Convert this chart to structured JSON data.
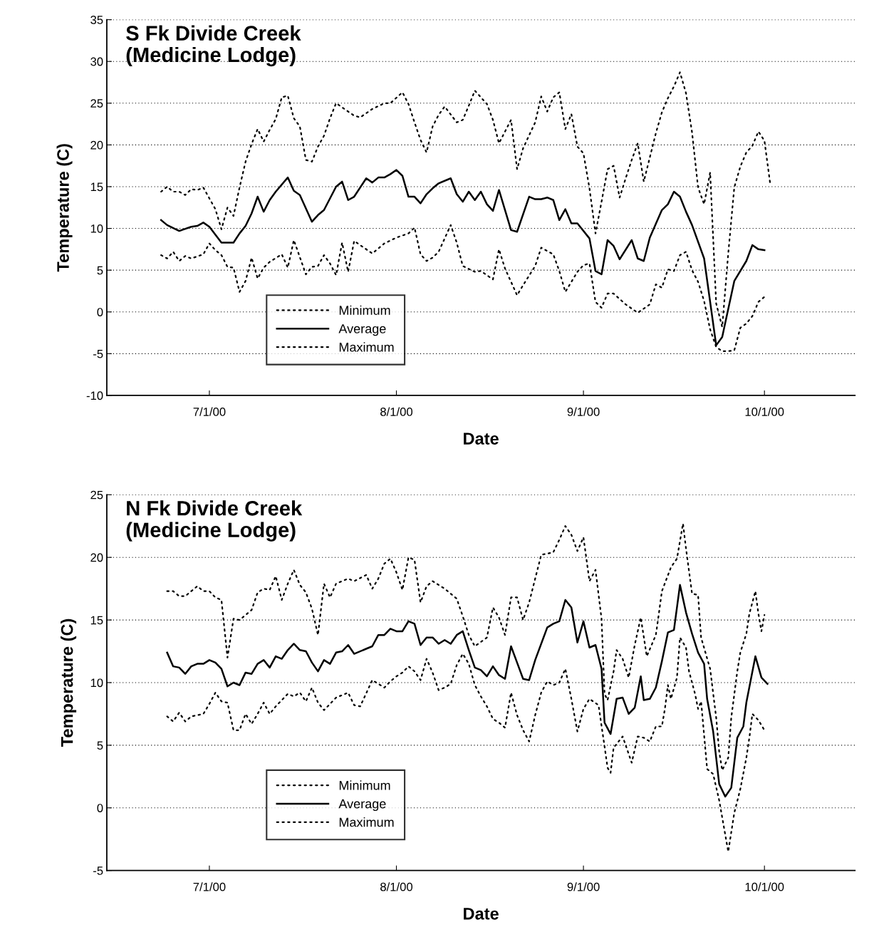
{
  "chart_data": [
    {
      "type": "line",
      "title": "S Fk Divide Creek\n(Medicine Lodge)",
      "xlabel": "Date",
      "ylabel": "Temperature (C)",
      "xlim": [
        "2000-06-14",
        "2000-10-16"
      ],
      "ylim": [
        -10,
        35
      ],
      "xticks": [
        {
          "value": "2000-07-01",
          "label": "7/1/00"
        },
        {
          "value": "2000-08-01",
          "label": "8/1/00"
        },
        {
          "value": "2000-09-01",
          "label": "9/1/00"
        },
        {
          "value": "2000-10-01",
          "label": "10/1/00"
        }
      ],
      "yticks": [
        -10,
        -5,
        0,
        5,
        10,
        15,
        20,
        25,
        30,
        35
      ],
      "grid": "y",
      "legend": "bottom left",
      "series": [
        {
          "name": "Minimum",
          "color": "#000000",
          "line_style": "dotted",
          "x": [
            "2000-06-23",
            "2000-06-24",
            "2000-06-25",
            "2000-06-26",
            "2000-06-27",
            "2000-06-28",
            "2000-06-30",
            "2000-07-01",
            "2000-07-02",
            "2000-07-03",
            "2000-07-04",
            "2000-07-05",
            "2000-07-06",
            "2000-07-07",
            "2000-07-08",
            "2000-07-09",
            "2000-07-10",
            "2000-07-11",
            "2000-07-13",
            "2000-07-14",
            "2000-07-15",
            "2000-07-17",
            "2000-07-18",
            "2000-07-19",
            "2000-07-20",
            "2000-07-21",
            "2000-07-22",
            "2000-07-23",
            "2000-07-24",
            "2000-07-25",
            "2000-07-28",
            "2000-07-30",
            "2000-08-01",
            "2000-08-03",
            "2000-08-04",
            "2000-08-05",
            "2000-08-06",
            "2000-08-07",
            "2000-08-08",
            "2000-08-10",
            "2000-08-11",
            "2000-08-12",
            "2000-08-14",
            "2000-08-15",
            "2000-08-17",
            "2000-08-18",
            "2000-08-19",
            "2000-08-21",
            "2000-08-22",
            "2000-08-24",
            "2000-08-25",
            "2000-08-27",
            "2000-08-28",
            "2000-08-29",
            "2000-08-31",
            "2000-09-01",
            "2000-09-02",
            "2000-09-03",
            "2000-09-04",
            "2000-09-05",
            "2000-09-06",
            "2000-09-08",
            "2000-09-09",
            "2000-09-10",
            "2000-09-12",
            "2000-09-13",
            "2000-09-14",
            "2000-09-15",
            "2000-09-16",
            "2000-09-17",
            "2000-09-18",
            "2000-09-19",
            "2000-09-20",
            "2000-09-21",
            "2000-09-22",
            "2000-09-23",
            "2000-09-24",
            "2000-09-25",
            "2000-09-26",
            "2000-09-27",
            "2000-09-28",
            "2000-09-29",
            "2000-09-30",
            "2000-10-01"
          ],
          "values": [
            6.8,
            6.4,
            7.2,
            6.1,
            6.7,
            6.4,
            6.9,
            8.2,
            7.4,
            6.8,
            5.4,
            5.3,
            2.4,
            3.7,
            6.5,
            4.0,
            5.3,
            6.0,
            6.9,
            5.3,
            8.6,
            4.5,
            5.4,
            5.5,
            6.8,
            5.8,
            4.4,
            8.3,
            4.8,
            8.5,
            7.0,
            8.2,
            8.9,
            9.4,
            10.1,
            6.9,
            6.1,
            6.5,
            7.2,
            10.4,
            8.3,
            5.5,
            4.8,
            4.9,
            3.9,
            7.5,
            5.2,
            2.0,
            3.2,
            5.5,
            7.7,
            6.9,
            4.9,
            2.4,
            4.8,
            5.6,
            5.8,
            1.2,
            0.5,
            2.2,
            2.2,
            0.9,
            0.4,
            -0.1,
            0.9,
            3.3,
            2.9,
            5.1,
            4.9,
            6.8,
            7.2,
            5.0,
            3.6,
            1.3,
            -2.1,
            -4.2,
            -4.7,
            -4.7,
            -4.6,
            -1.9,
            -1.4,
            -0.5,
            1.2,
            1.8
          ]
        },
        {
          "name": "Average",
          "color": "#000000",
          "line_style": "solid",
          "x": [
            "2000-06-23",
            "2000-06-24",
            "2000-06-26",
            "2000-06-28",
            "2000-06-29",
            "2000-06-30",
            "2000-07-01",
            "2000-07-03",
            "2000-07-05",
            "2000-07-06",
            "2000-07-07",
            "2000-07-08",
            "2000-07-09",
            "2000-07-10",
            "2000-07-11",
            "2000-07-12",
            "2000-07-14",
            "2000-07-15",
            "2000-07-16",
            "2000-07-18",
            "2000-07-19",
            "2000-07-20",
            "2000-07-22",
            "2000-07-23",
            "2000-07-24",
            "2000-07-25",
            "2000-07-27",
            "2000-07-28",
            "2000-07-29",
            "2000-07-30",
            "2000-07-31",
            "2000-08-01",
            "2000-08-02",
            "2000-08-03",
            "2000-08-04",
            "2000-08-05",
            "2000-08-06",
            "2000-08-07",
            "2000-08-08",
            "2000-08-10",
            "2000-08-11",
            "2000-08-12",
            "2000-08-13",
            "2000-08-14",
            "2000-08-15",
            "2000-08-16",
            "2000-08-17",
            "2000-08-18",
            "2000-08-20",
            "2000-08-21",
            "2000-08-23",
            "2000-08-24",
            "2000-08-25",
            "2000-08-26",
            "2000-08-27",
            "2000-08-28",
            "2000-08-29",
            "2000-08-30",
            "2000-08-31",
            "2000-09-02",
            "2000-09-03",
            "2000-09-04",
            "2000-09-05",
            "2000-09-06",
            "2000-09-07",
            "2000-09-09",
            "2000-09-10",
            "2000-09-11",
            "2000-09-12",
            "2000-09-14",
            "2000-09-15",
            "2000-09-16",
            "2000-09-17",
            "2000-09-18",
            "2000-09-19",
            "2000-09-21",
            "2000-09-23",
            "2000-09-24",
            "2000-09-26",
            "2000-09-28",
            "2000-09-29",
            "2000-09-30",
            "2000-10-01"
          ],
          "values": [
            11.0,
            10.4,
            9.7,
            10.2,
            10.3,
            10.7,
            10.2,
            8.3,
            8.3,
            9.4,
            10.3,
            11.8,
            13.8,
            12.0,
            13.4,
            14.4,
            16.1,
            14.5,
            14.0,
            10.8,
            11.6,
            12.2,
            15.0,
            15.6,
            13.4,
            13.8,
            16.0,
            15.5,
            16.1,
            16.1,
            16.5,
            17.0,
            16.3,
            13.8,
            13.8,
            13.0,
            14.1,
            14.8,
            15.4,
            16.0,
            14.1,
            13.2,
            14.4,
            13.4,
            14.4,
            12.9,
            12.1,
            14.6,
            9.8,
            9.6,
            13.8,
            13.5,
            13.5,
            13.7,
            13.4,
            11.0,
            12.3,
            10.6,
            10.6,
            8.8,
            4.9,
            4.5,
            8.6,
            7.9,
            6.3,
            8.6,
            6.4,
            6.1,
            8.9,
            12.2,
            12.9,
            14.4,
            13.8,
            12.0,
            10.4,
            6.4,
            -4.0,
            -3.0,
            3.7,
            6.1,
            8.0,
            7.5,
            7.4
          ]
        },
        {
          "name": "Maximum",
          "color": "#000000",
          "line_style": "dotted",
          "x": [
            "2000-06-23",
            "2000-06-24",
            "2000-06-25",
            "2000-06-26",
            "2000-06-27",
            "2000-06-28",
            "2000-06-29",
            "2000-06-30",
            "2000-07-01",
            "2000-07-02",
            "2000-07-03",
            "2000-07-04",
            "2000-07-05",
            "2000-07-06",
            "2000-07-07",
            "2000-07-08",
            "2000-07-09",
            "2000-07-10",
            "2000-07-11",
            "2000-07-12",
            "2000-07-13",
            "2000-07-14",
            "2000-07-15",
            "2000-07-16",
            "2000-07-17",
            "2000-07-18",
            "2000-07-19",
            "2000-07-20",
            "2000-07-21",
            "2000-07-22",
            "2000-07-23",
            "2000-07-25",
            "2000-07-26",
            "2000-07-28",
            "2000-07-30",
            "2000-07-31",
            "2000-08-02",
            "2000-08-03",
            "2000-08-04",
            "2000-08-05",
            "2000-08-06",
            "2000-08-07",
            "2000-08-08",
            "2000-08-09",
            "2000-08-11",
            "2000-08-12",
            "2000-08-13",
            "2000-08-14",
            "2000-08-16",
            "2000-08-17",
            "2000-08-18",
            "2000-08-19",
            "2000-08-20",
            "2000-08-21",
            "2000-08-22",
            "2000-08-24",
            "2000-08-25",
            "2000-08-26",
            "2000-08-27",
            "2000-08-28",
            "2000-08-29",
            "2000-08-30",
            "2000-08-31",
            "2000-09-01",
            "2000-09-02",
            "2000-09-03",
            "2000-09-04",
            "2000-09-05",
            "2000-09-06",
            "2000-09-07",
            "2000-09-08",
            "2000-09-09",
            "2000-09-10",
            "2000-09-11",
            "2000-09-12",
            "2000-09-13",
            "2000-09-14",
            "2000-09-15",
            "2000-09-16",
            "2000-09-17",
            "2000-09-18",
            "2000-09-19",
            "2000-09-20",
            "2000-09-21",
            "2000-09-22",
            "2000-09-23",
            "2000-09-24",
            "2000-09-25",
            "2000-09-26",
            "2000-09-27",
            "2000-09-28",
            "2000-09-29",
            "2000-09-30",
            "2000-10-01",
            "2000-10-02"
          ],
          "values": [
            14.4,
            15.0,
            14.4,
            14.4,
            14.0,
            14.7,
            14.6,
            14.9,
            13.6,
            12.3,
            9.9,
            12.5,
            11.5,
            14.9,
            18.0,
            20.1,
            21.9,
            20.4,
            21.8,
            23.1,
            25.7,
            25.9,
            23.2,
            22.2,
            18.2,
            18.0,
            19.8,
            21.1,
            23.2,
            25.0,
            24.5,
            23.5,
            23.3,
            24.3,
            25.0,
            25.0,
            26.3,
            24.9,
            22.7,
            20.6,
            19.1,
            22.2,
            23.6,
            24.6,
            22.7,
            23.0,
            24.7,
            26.5,
            24.9,
            23.0,
            20.2,
            21.6,
            23.0,
            17.1,
            19.6,
            22.7,
            25.8,
            24.0,
            25.7,
            26.3,
            21.9,
            23.7,
            19.8,
            19.0,
            14.8,
            9.4,
            13.2,
            17.1,
            17.5,
            13.7,
            16.0,
            18.2,
            20.2,
            15.6,
            18.5,
            21.4,
            23.9,
            25.6,
            27.0,
            28.7,
            26.2,
            21.5,
            14.9,
            12.9,
            16.7,
            1.0,
            -1.8,
            7.0,
            14.9,
            17.4,
            19.1,
            19.9,
            21.6,
            20.5,
            15.1
          ]
        }
      ]
    },
    {
      "type": "line",
      "title": "N Fk Divide Creek\n(Medicine Lodge)",
      "xlabel": "Date",
      "ylabel": "Temperature (C)",
      "xlim": [
        "2000-06-14",
        "2000-10-16"
      ],
      "ylim": [
        -5,
        25
      ],
      "xticks": [
        {
          "value": "2000-07-01",
          "label": "7/1/00"
        },
        {
          "value": "2000-08-01",
          "label": "8/1/00"
        },
        {
          "value": "2000-09-01",
          "label": "9/1/00"
        },
        {
          "value": "2000-10-01",
          "label": "10/1/00"
        }
      ],
      "yticks": [
        -5,
        0,
        5,
        10,
        15,
        20,
        25
      ],
      "grid": "y",
      "legend": "bottom left",
      "series": [
        {
          "name": "Minimum",
          "color": "#000000",
          "line_style": "dotted",
          "x": [
            "2000-06-24",
            "2000-06-25",
            "2000-06-26",
            "2000-06-27",
            "2000-06-28",
            "2000-06-30",
            "2000-07-01",
            "2000-07-02",
            "2000-07-03",
            "2000-07-04",
            "2000-07-05",
            "2000-07-06",
            "2000-07-07",
            "2000-07-08",
            "2000-07-09",
            "2000-07-10",
            "2000-07-11",
            "2000-07-12",
            "2000-07-13",
            "2000-07-14",
            "2000-07-15",
            "2000-07-16",
            "2000-07-17",
            "2000-07-18",
            "2000-07-19",
            "2000-07-20",
            "2000-07-21",
            "2000-07-22",
            "2000-07-24",
            "2000-07-25",
            "2000-07-26",
            "2000-07-28",
            "2000-07-29",
            "2000-07-30",
            "2000-07-31",
            "2000-08-01",
            "2000-08-02",
            "2000-08-03",
            "2000-08-04",
            "2000-08-05",
            "2000-08-06",
            "2000-08-07",
            "2000-08-08",
            "2000-08-09",
            "2000-08-10",
            "2000-08-11",
            "2000-08-12",
            "2000-08-13",
            "2000-08-14",
            "2000-08-15",
            "2000-08-16",
            "2000-08-17",
            "2000-08-18",
            "2000-08-19",
            "2000-08-20",
            "2000-08-21",
            "2000-08-22",
            "2000-08-23",
            "2000-08-24",
            "2000-08-25",
            "2000-08-26",
            "2000-08-27",
            "2000-08-28",
            "2000-08-29",
            "2000-08-30",
            "2000-08-31",
            "2000-09-01",
            "2000-09-02",
            "2000-09-03T12:00",
            "2000-09-04T12:00",
            "2000-09-05",
            "2000-09-05T12:00",
            "2000-09-06",
            "2000-09-07T12:00",
            "2000-09-08",
            "2000-09-09",
            "2000-09-10",
            "2000-09-11",
            "2000-09-12",
            "2000-09-13",
            "2000-09-14",
            "2000-09-14T12:00",
            "2000-09-15",
            "2000-09-15T12:00",
            "2000-09-16T12:00",
            "2000-09-17",
            "2000-09-18",
            "2000-09-18T12:00",
            "2000-09-19T12:00",
            "2000-09-20",
            "2000-09-20T12:00",
            "2000-09-21T12:00",
            "2000-09-22T12:00",
            "2000-09-23T12:00",
            "2000-09-25",
            "2000-09-26",
            "2000-09-27",
            "2000-09-28",
            "2000-09-28T12:00",
            "2000-09-29",
            "2000-09-30",
            "2000-10-01"
          ],
          "values": [
            7.3,
            6.9,
            7.6,
            6.9,
            7.3,
            7.5,
            8.3,
            9.2,
            8.5,
            8.4,
            6.2,
            6.2,
            7.5,
            6.7,
            7.5,
            8.4,
            7.5,
            8.1,
            8.6,
            9.1,
            8.9,
            9.2,
            8.5,
            9.6,
            8.4,
            7.8,
            8.3,
            8.8,
            9.2,
            8.2,
            8.1,
            10.2,
            9.9,
            9.6,
            10.1,
            10.5,
            10.8,
            11.3,
            10.9,
            10.2,
            11.9,
            10.8,
            9.4,
            9.6,
            9.9,
            11.4,
            12.3,
            11.5,
            9.8,
            8.9,
            8.1,
            7.1,
            6.8,
            6.4,
            9.2,
            7.4,
            6.2,
            5.3,
            7.4,
            9.2,
            10.1,
            9.8,
            10.0,
            11.1,
            8.7,
            6.1,
            7.9,
            8.7,
            8.2,
            4.9,
            3.2,
            2.8,
            4.8,
            5.7,
            5.0,
            3.6,
            5.7,
            5.6,
            5.3,
            6.5,
            6.5,
            7.9,
            9.8,
            8.7,
            10.4,
            13.6,
            12.8,
            10.9,
            9.1,
            7.9,
            8.5,
            3.1,
            2.7,
            0.6,
            -3.5,
            -0.4,
            1.5,
            4.0,
            5.6,
            7.5,
            7.0,
            6.2
          ]
        },
        {
          "name": "Average",
          "color": "#000000",
          "line_style": "solid",
          "x": [
            "2000-06-24",
            "2000-06-25",
            "2000-06-26",
            "2000-06-27",
            "2000-06-28",
            "2000-06-29",
            "2000-06-30",
            "2000-07-01",
            "2000-07-02",
            "2000-07-03",
            "2000-07-04",
            "2000-07-05",
            "2000-07-06",
            "2000-07-07",
            "2000-07-08",
            "2000-07-09",
            "2000-07-10",
            "2000-07-11",
            "2000-07-12",
            "2000-07-13",
            "2000-07-14",
            "2000-07-15",
            "2000-07-16",
            "2000-07-17",
            "2000-07-18",
            "2000-07-19",
            "2000-07-20",
            "2000-07-21",
            "2000-07-22",
            "2000-07-23",
            "2000-07-24",
            "2000-07-25",
            "2000-07-27",
            "2000-07-28",
            "2000-07-29",
            "2000-07-30",
            "2000-07-31",
            "2000-08-01",
            "2000-08-02",
            "2000-08-03",
            "2000-08-04",
            "2000-08-05",
            "2000-08-06",
            "2000-08-07",
            "2000-08-08",
            "2000-08-09",
            "2000-08-10",
            "2000-08-11",
            "2000-08-12",
            "2000-08-13",
            "2000-08-14",
            "2000-08-15",
            "2000-08-16",
            "2000-08-17",
            "2000-08-18",
            "2000-08-19",
            "2000-08-20",
            "2000-08-21",
            "2000-08-22",
            "2000-08-23",
            "2000-08-24",
            "2000-08-26",
            "2000-08-27",
            "2000-08-28",
            "2000-08-29",
            "2000-08-30",
            "2000-08-31",
            "2000-09-01",
            "2000-09-02",
            "2000-09-03",
            "2000-09-04",
            "2000-09-04T12:00",
            "2000-09-05T12:00",
            "2000-09-06T12:00",
            "2000-09-07T12:00",
            "2000-09-08T12:00",
            "2000-09-09T12:00",
            "2000-09-10T12:00",
            "2000-09-11",
            "2000-09-12",
            "2000-09-13",
            "2000-09-14",
            "2000-09-15",
            "2000-09-16",
            "2000-09-17",
            "2000-09-18",
            "2000-09-19",
            "2000-09-20",
            "2000-09-21",
            "2000-09-21T12:00",
            "2000-09-22T12:00",
            "2000-09-23T12:00",
            "2000-09-24T12:00",
            "2000-09-25T12:00",
            "2000-09-26T12:00",
            "2000-09-27T12:00",
            "2000-09-28",
            "2000-09-29T12:00",
            "2000-09-30T12:00",
            "2000-10-01T12:00"
          ],
          "values": [
            12.4,
            11.3,
            11.2,
            10.7,
            11.3,
            11.5,
            11.5,
            11.8,
            11.6,
            11.1,
            9.7,
            10.0,
            9.8,
            10.8,
            10.7,
            11.5,
            11.8,
            11.2,
            12.1,
            11.9,
            12.6,
            13.1,
            12.6,
            12.5,
            11.6,
            10.9,
            11.8,
            11.5,
            12.4,
            12.5,
            13.0,
            12.3,
            12.7,
            12.9,
            13.8,
            13.8,
            14.3,
            14.1,
            14.1,
            14.9,
            14.7,
            13.0,
            13.6,
            13.6,
            13.1,
            13.4,
            13.1,
            13.8,
            14.1,
            12.6,
            11.2,
            11.0,
            10.5,
            11.3,
            10.6,
            10.3,
            12.9,
            11.6,
            10.3,
            10.2,
            11.8,
            14.4,
            14.7,
            14.9,
            16.6,
            16.0,
            13.2,
            14.9,
            12.8,
            13.0,
            11.1,
            6.8,
            5.9,
            8.7,
            8.8,
            7.5,
            8.0,
            10.5,
            8.6,
            8.7,
            9.6,
            11.7,
            14.0,
            14.2,
            17.8,
            15.6,
            13.9,
            12.4,
            11.5,
            8.7,
            6.1,
            1.9,
            0.9,
            1.6,
            5.6,
            6.5,
            8.4,
            12.1,
            10.4,
            9.9
          ]
        },
        {
          "name": "Maximum",
          "color": "#000000",
          "line_style": "dotted",
          "x": [
            "2000-06-24",
            "2000-06-25",
            "2000-06-26",
            "2000-06-27",
            "2000-06-29",
            "2000-06-30",
            "2000-07-01",
            "2000-07-02",
            "2000-07-03",
            "2000-07-04",
            "2000-07-05",
            "2000-07-06",
            "2000-07-08",
            "2000-07-09",
            "2000-07-10",
            "2000-07-11",
            "2000-07-12",
            "2000-07-13",
            "2000-07-14",
            "2000-07-15",
            "2000-07-16",
            "2000-07-17",
            "2000-07-18",
            "2000-07-19",
            "2000-07-20",
            "2000-07-21",
            "2000-07-22",
            "2000-07-24",
            "2000-07-25",
            "2000-07-27",
            "2000-07-28",
            "2000-07-29",
            "2000-07-30",
            "2000-07-31",
            "2000-08-01",
            "2000-08-02",
            "2000-08-03",
            "2000-08-04",
            "2000-08-05",
            "2000-08-06",
            "2000-08-07",
            "2000-08-08",
            "2000-08-09",
            "2000-08-11",
            "2000-08-12",
            "2000-08-13",
            "2000-08-14",
            "2000-08-16",
            "2000-08-17",
            "2000-08-18",
            "2000-08-19",
            "2000-08-20",
            "2000-08-21",
            "2000-08-22",
            "2000-08-23",
            "2000-08-24",
            "2000-08-25",
            "2000-08-27",
            "2000-08-28",
            "2000-08-29",
            "2000-08-30",
            "2000-08-31",
            "2000-09-01",
            "2000-09-02",
            "2000-09-03",
            "2000-09-04",
            "2000-09-04T12:00",
            "2000-09-05",
            "2000-09-06",
            "2000-09-06T12:00",
            "2000-09-07T12:00",
            "2000-09-08T12:00",
            "2000-09-09T12:00",
            "2000-09-10T12:00",
            "2000-09-11T12:00",
            "2000-09-13",
            "2000-09-13T12:00",
            "2000-09-14",
            "2000-09-15T12:00",
            "2000-09-16T12:00",
            "2000-09-17T12:00",
            "2000-09-18",
            "2000-09-19",
            "2000-09-20",
            "2000-09-20T12:00",
            "2000-09-22",
            "2000-09-23",
            "2000-09-23T12:00",
            "2000-09-24",
            "2000-09-25",
            "2000-09-25T12:00",
            "2000-09-26T12:00",
            "2000-09-27",
            "2000-09-28",
            "2000-09-28T12:00",
            "2000-09-29T12:00",
            "2000-09-30",
            "2000-09-30T12:00",
            "2000-10-01"
          ],
          "values": [
            17.3,
            17.3,
            16.9,
            16.9,
            17.7,
            17.3,
            17.3,
            16.8,
            16.6,
            12.0,
            15.1,
            15.0,
            15.8,
            17.2,
            17.5,
            17.4,
            18.5,
            16.6,
            17.9,
            19.0,
            17.8,
            17.2,
            15.9,
            13.8,
            17.9,
            16.8,
            17.9,
            18.3,
            18.1,
            18.6,
            17.5,
            18.3,
            19.5,
            19.9,
            18.8,
            17.4,
            20.0,
            19.8,
            16.4,
            17.7,
            18.1,
            17.8,
            17.5,
            16.7,
            15.3,
            13.8,
            12.9,
            13.6,
            16.0,
            15.2,
            13.8,
            16.8,
            16.8,
            15.0,
            16.4,
            18.3,
            20.2,
            20.4,
            21.4,
            22.5,
            21.8,
            20.5,
            21.6,
            18.1,
            19.0,
            15.1,
            9.1,
            8.6,
            10.9,
            12.6,
            11.9,
            10.4,
            13.0,
            15.2,
            12.1,
            13.8,
            15.5,
            17.3,
            19.2,
            19.9,
            22.7,
            20.7,
            17.1,
            17.0,
            13.6,
            11.1,
            7.2,
            4.5,
            3.0,
            4.0,
            7.2,
            10.9,
            12.4,
            13.9,
            15.5,
            17.3,
            15.5,
            14.1,
            15.4
          ]
        }
      ]
    }
  ]
}
